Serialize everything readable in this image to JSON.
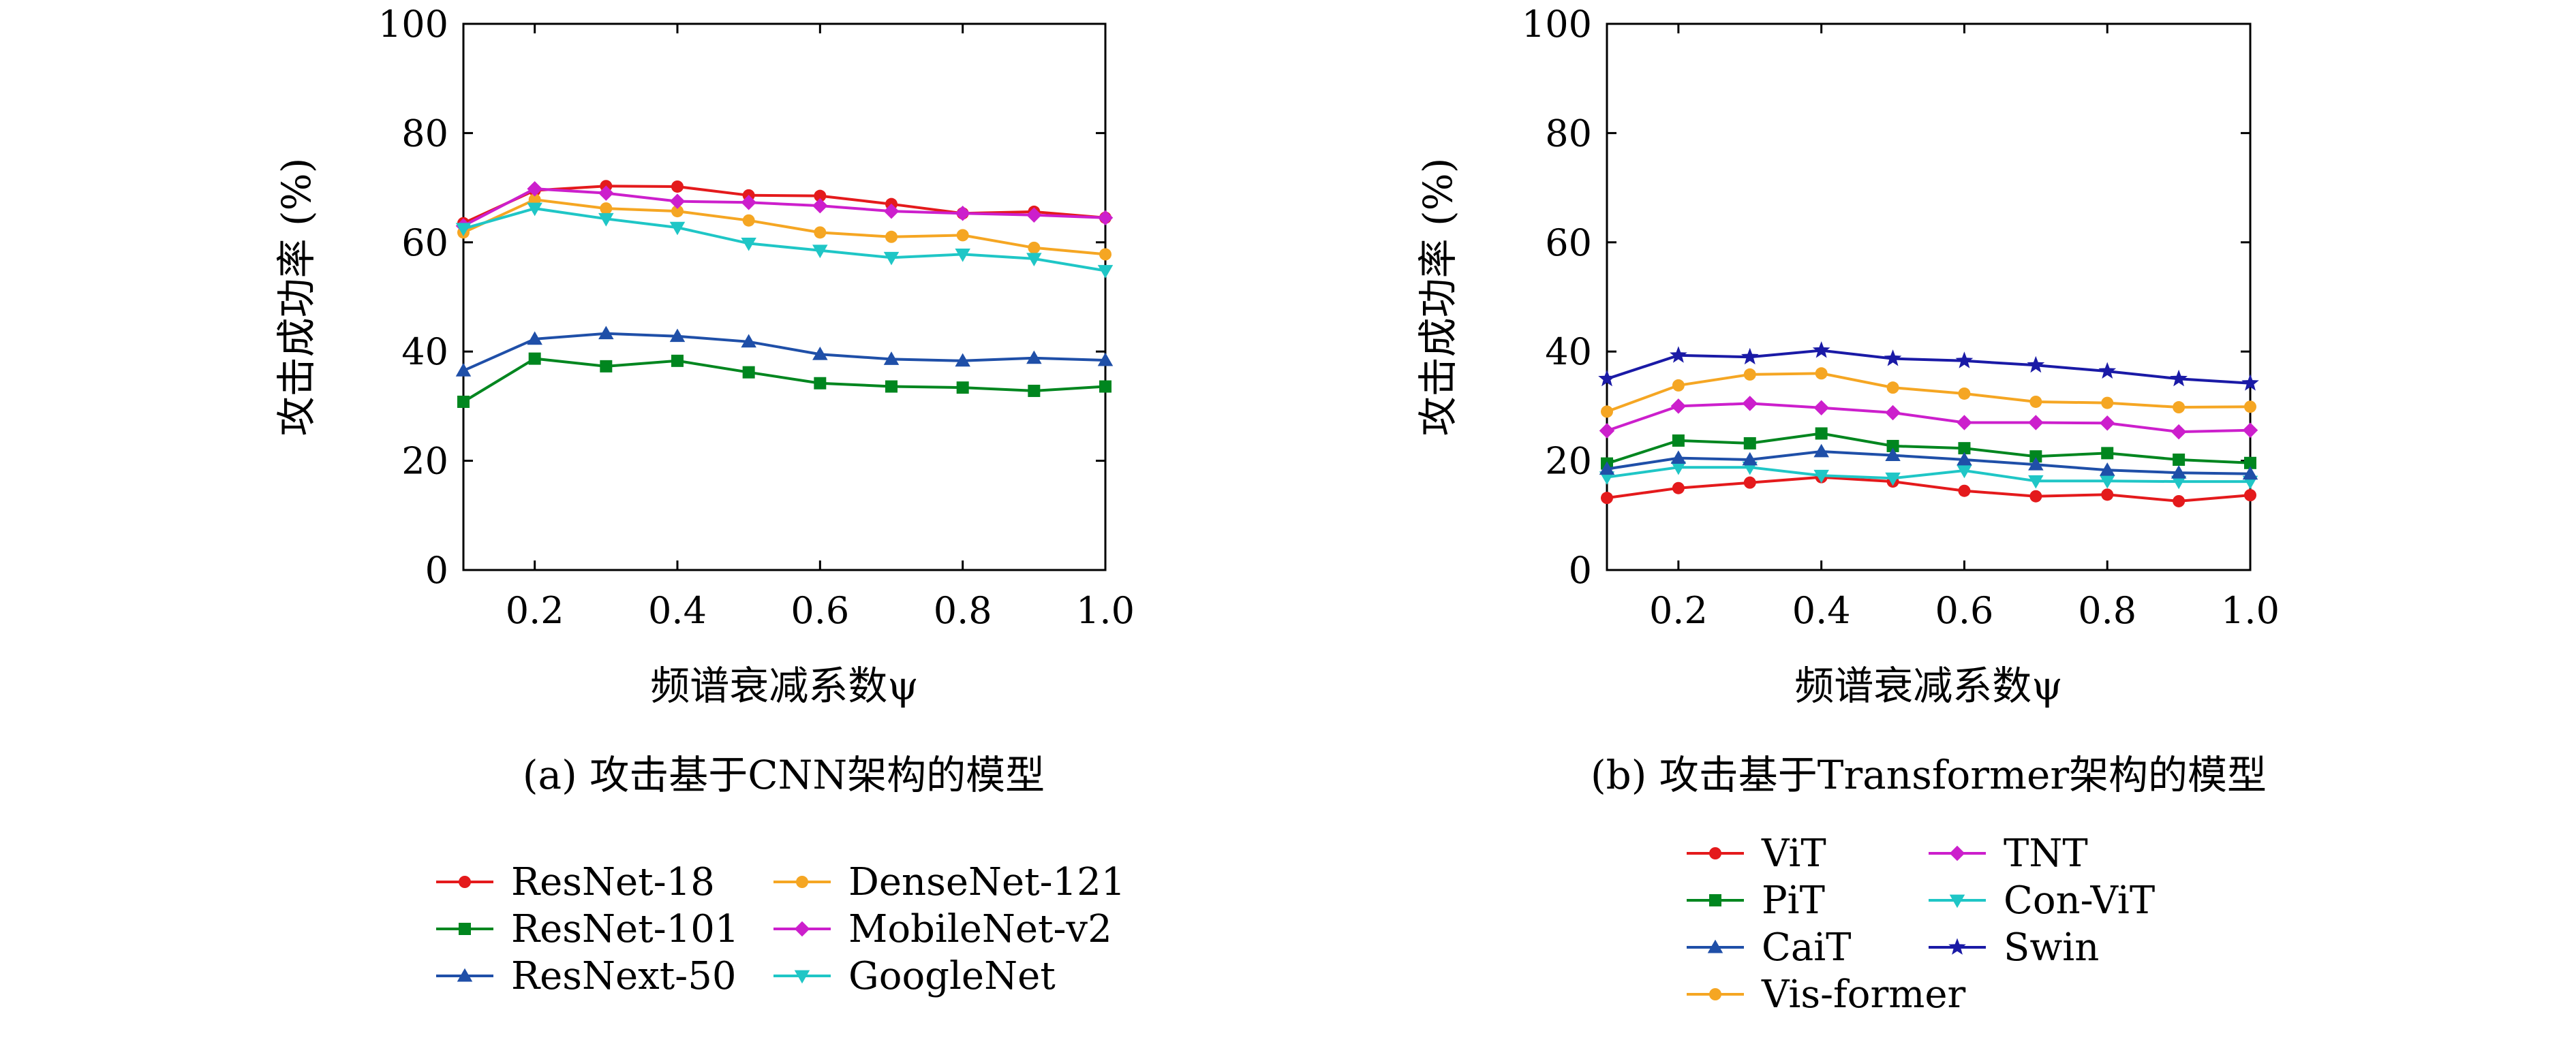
{
  "chart_data": [
    {
      "type": "line",
      "caption": "(a) 攻击基于CNN架构的模型",
      "xlabel": "频谱衰减系数ψ",
      "ylabel": "攻击成功率 (%)",
      "xlim": [
        0.1,
        1.0
      ],
      "ylim": [
        0,
        100
      ],
      "xticks": [
        "0.2",
        "0.4",
        "0.6",
        "0.8",
        "1.0"
      ],
      "yticks": [
        "0",
        "20",
        "40",
        "60",
        "80",
        "100"
      ],
      "grid": false,
      "legend_position": "bottom",
      "legend_columns": 2,
      "x": [
        0.1,
        0.2,
        0.3,
        0.4,
        0.5,
        0.6,
        0.7,
        0.8,
        0.9,
        1.0
      ],
      "series": [
        {
          "name": "ResNet-18",
          "color": "#e41a1c",
          "marker": "circle",
          "values": [
            63.5,
            69.5,
            70.3,
            70.2,
            68.6,
            68.5,
            67.0,
            65.3,
            65.6,
            64.5
          ]
        },
        {
          "name": "DenseNet-121",
          "color": "#f5a623",
          "marker": "circle",
          "values": [
            61.8,
            67.8,
            66.2,
            65.7,
            64.0,
            61.8,
            61.0,
            61.3,
            59.0,
            57.8
          ]
        },
        {
          "name": "ResNet-101",
          "color": "#00861f",
          "marker": "square",
          "values": [
            30.8,
            38.7,
            37.3,
            38.3,
            36.2,
            34.2,
            33.6,
            33.4,
            32.8,
            33.6
          ]
        },
        {
          "name": "MobileNet-v2",
          "color": "#cc1fcc",
          "marker": "diamond",
          "values": [
            63.0,
            69.8,
            69.0,
            67.5,
            67.3,
            66.7,
            65.7,
            65.3,
            65.0,
            64.5
          ]
        },
        {
          "name": "ResNext-50",
          "color": "#1f4fa8",
          "marker": "triangle-up",
          "values": [
            36.5,
            42.3,
            43.3,
            42.8,
            41.8,
            39.5,
            38.6,
            38.3,
            38.8,
            38.4
          ]
        },
        {
          "name": "GoogleNet",
          "color": "#1fc6c6",
          "marker": "triangle-down",
          "values": [
            62.5,
            66.2,
            64.3,
            62.7,
            59.8,
            58.5,
            57.2,
            57.8,
            57.0,
            54.8
          ]
        }
      ]
    },
    {
      "type": "line",
      "caption": "(b) 攻击基于Transformer架构的模型",
      "xlabel": "频谱衰减系数ψ",
      "ylabel": "攻击成功率 (%)",
      "xlim": [
        0.1,
        1.0
      ],
      "ylim": [
        0,
        100
      ],
      "xticks": [
        "0.2",
        "0.4",
        "0.6",
        "0.8",
        "1.0"
      ],
      "yticks": [
        "0",
        "20",
        "40",
        "60",
        "80",
        "100"
      ],
      "grid": false,
      "legend_position": "bottom",
      "legend_columns": 2,
      "x": [
        0.1,
        0.2,
        0.3,
        0.4,
        0.5,
        0.6,
        0.7,
        0.8,
        0.9,
        1.0
      ],
      "series": [
        {
          "name": "ViT",
          "color": "#e41a1c",
          "marker": "circle",
          "values": [
            13.2,
            15.0,
            16.0,
            17.0,
            16.2,
            14.5,
            13.5,
            13.8,
            12.6,
            13.7
          ]
        },
        {
          "name": "TNT",
          "color": "#cc1fcc",
          "marker": "diamond",
          "values": [
            25.5,
            30.0,
            30.5,
            29.7,
            28.8,
            27.0,
            27.0,
            26.9,
            25.3,
            25.6
          ]
        },
        {
          "name": "PiT",
          "color": "#00861f",
          "marker": "square",
          "values": [
            19.5,
            23.7,
            23.2,
            25.0,
            22.7,
            22.3,
            20.8,
            21.4,
            20.2,
            19.6
          ]
        },
        {
          "name": "Con-ViT",
          "color": "#1fc6c6",
          "marker": "triangle-down",
          "values": [
            17.0,
            18.8,
            18.8,
            17.3,
            16.8,
            18.2,
            16.3,
            16.3,
            16.2,
            16.2
          ]
        },
        {
          "name": "CaiT",
          "color": "#1f4fa8",
          "marker": "triangle-up",
          "values": [
            18.5,
            20.5,
            20.2,
            21.7,
            21.0,
            20.2,
            19.3,
            18.3,
            17.8,
            17.6
          ]
        },
        {
          "name": "Swin",
          "color": "#1a1aa6",
          "marker": "star",
          "values": [
            35.0,
            39.3,
            39.0,
            40.2,
            38.7,
            38.3,
            37.5,
            36.4,
            35.0,
            34.2
          ]
        },
        {
          "name": "Vis-former",
          "color": "#f5a623",
          "marker": "circle",
          "values": [
            29.0,
            33.8,
            35.8,
            36.0,
            33.4,
            32.3,
            30.8,
            30.6,
            29.8,
            29.9
          ]
        }
      ]
    }
  ]
}
